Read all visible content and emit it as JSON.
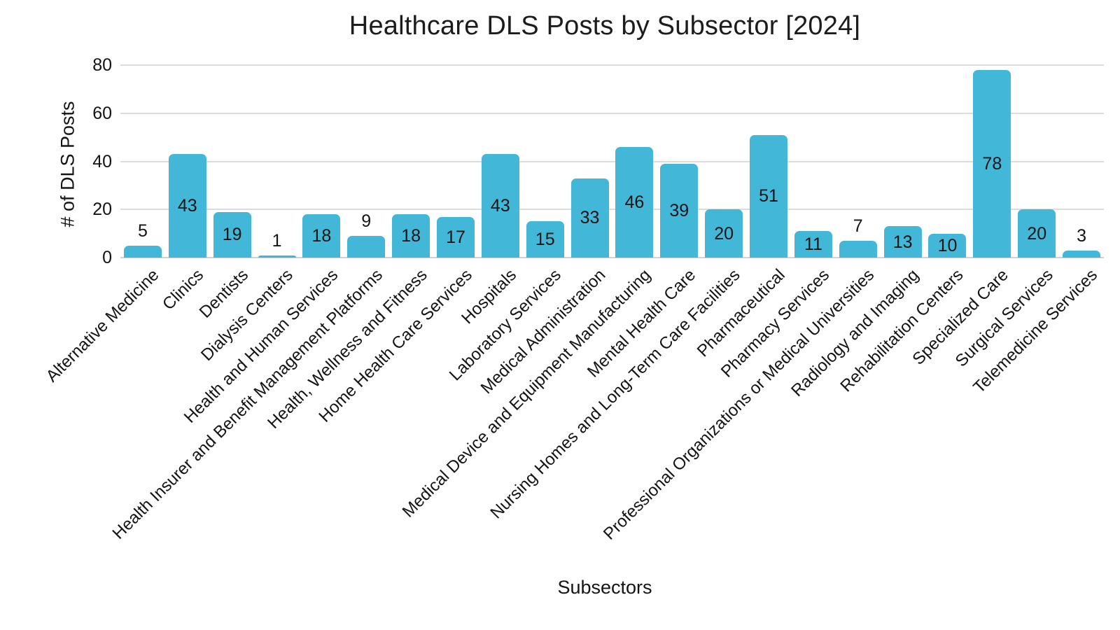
{
  "chart_data": {
    "type": "bar",
    "title": "Healthcare DLS Posts by Subsector [2024]",
    "xlabel": "Subsectors",
    "ylabel": "# of DLS Posts",
    "ylim": [
      0,
      80
    ],
    "yticks": [
      0,
      20,
      40,
      60,
      80
    ],
    "grid": true,
    "legend": "none",
    "bar_color": "#42b7d8",
    "gridline_color": "#dcdcdc",
    "text_color": "#141414",
    "categories": [
      "Alternative Medicine",
      "Clinics",
      "Dentists",
      "Dialysis Centers",
      "Health and Human Services",
      "Health Insurer and Benefit Management Platforms",
      "Health, Wellness and Fitness",
      "Home Health Care Services",
      "Hospitals",
      "Laboratory Services",
      "Medical Administration",
      "Medical Device and Equipment Manufacturing",
      "Mental Health Care",
      "Nursing Homes and Long-Term Care Facilities",
      "Pharmaceutical",
      "Pharmacy Services",
      "Professional Organizations or Medical Universities",
      "Radiology and Imaging",
      "Rehabilitation Centers",
      "Specialized Care",
      "Surgical Services",
      "Telemedicine Services"
    ],
    "values": [
      5,
      43,
      19,
      1,
      18,
      9,
      18,
      17,
      43,
      15,
      33,
      46,
      39,
      20,
      51,
      11,
      7,
      13,
      10,
      78,
      20,
      3
    ],
    "value_label_placement": "inside bar when value >= 10, above bar when value < 10"
  }
}
